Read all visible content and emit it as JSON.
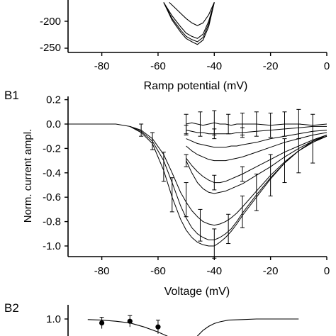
{
  "chart_data": [
    {
      "type": "line",
      "panel_label": "",
      "xlabel": "Ramp potential (mV)",
      "ylabel": "",
      "xlim": [
        -92,
        0
      ],
      "ylim": [
        -255,
        -165
      ],
      "x_ticks": [
        "-80",
        "-60",
        "-40",
        "-20",
        "0"
      ],
      "y_ticks": [
        "-200",
        "-250"
      ],
      "grid": false,
      "series": [
        {
          "x": [
            -56,
            -54,
            -52,
            -50,
            -48,
            -46,
            -44,
            -42,
            -40
          ],
          "y": [
            -165,
            -175,
            -185,
            -195,
            -203,
            -208,
            -203,
            -188,
            -165
          ]
        },
        {
          "x": [
            -58,
            -55,
            -52,
            -50,
            -48,
            -46,
            -44,
            -42,
            -40
          ],
          "y": [
            -165,
            -190,
            -210,
            -222,
            -228,
            -232,
            -224,
            -200,
            -165
          ]
        },
        {
          "x": [
            -58,
            -55,
            -52,
            -50,
            -48,
            -46,
            -44,
            -42,
            -40
          ],
          "y": [
            -165,
            -195,
            -216,
            -228,
            -234,
            -238,
            -230,
            -205,
            -165
          ]
        },
        {
          "x": [
            -58,
            -55,
            -52,
            -50,
            -48,
            -46,
            -44,
            -42,
            -40
          ],
          "y": [
            -165,
            -198,
            -220,
            -232,
            -238,
            -243,
            -235,
            -210,
            -165
          ]
        }
      ]
    },
    {
      "type": "line",
      "panel_label": "B1",
      "xlabel": "Voltage (mV)",
      "ylabel": "Norm. current ampl.",
      "xlim": [
        -92,
        0
      ],
      "ylim": [
        -1.07,
        0.22
      ],
      "x_ticks": [
        "-80",
        "-60",
        "-40",
        "-20",
        "0"
      ],
      "y_ticks": [
        "0.2",
        "0.0",
        "-0.2",
        "-0.4",
        "-0.6",
        "-0.8",
        "-1.0"
      ],
      "grid": false,
      "series": [
        {
          "x": [
            -92,
            -85,
            -80,
            -75,
            -70,
            -66,
            -62,
            -58,
            -55,
            -52,
            -50,
            -48,
            -46,
            -44,
            -42,
            -40,
            -38,
            -36,
            -34,
            -32,
            -30,
            -25,
            -20,
            -15,
            -10,
            -5,
            0
          ],
          "y": [
            0.0,
            0.0,
            0.0,
            0.0,
            -0.02,
            -0.07,
            -0.16,
            -0.38,
            -0.6,
            -0.78,
            -0.87,
            -0.93,
            -0.97,
            -0.99,
            -1.0,
            -1.0,
            -0.97,
            -0.93,
            -0.88,
            -0.82,
            -0.75,
            -0.6,
            -0.45,
            -0.32,
            -0.22,
            -0.14,
            -0.09
          ]
        },
        {
          "x": [
            -70,
            -66,
            -62,
            -58,
            -55,
            -52,
            -50,
            -48,
            -46,
            -44,
            -42,
            -40,
            -38,
            -36,
            -34,
            -32,
            -30,
            -25,
            -20,
            -15,
            -10,
            -5,
            0
          ],
          "y": [
            -0.02,
            -0.06,
            -0.14,
            -0.3,
            -0.48,
            -0.67,
            -0.77,
            -0.85,
            -0.9,
            -0.93,
            -0.95,
            -0.95,
            -0.93,
            -0.9,
            -0.86,
            -0.8,
            -0.73,
            -0.58,
            -0.44,
            -0.32,
            -0.22,
            -0.15,
            -0.1
          ]
        },
        {
          "x": [
            -70,
            -66,
            -62,
            -58,
            -55,
            -52,
            -50,
            -48,
            -46,
            -44,
            -42,
            -40,
            -38,
            -36,
            -34,
            -32,
            -30,
            -25,
            -20,
            -15,
            -10,
            -5,
            0
          ],
          "y": [
            -0.02,
            -0.05,
            -0.12,
            -0.25,
            -0.4,
            -0.56,
            -0.64,
            -0.71,
            -0.76,
            -0.8,
            -0.82,
            -0.83,
            -0.82,
            -0.8,
            -0.77,
            -0.73,
            -0.68,
            -0.55,
            -0.42,
            -0.31,
            -0.22,
            -0.15,
            -0.1
          ]
        },
        {
          "x": [
            -50,
            -48,
            -46,
            -44,
            -42,
            -40,
            -38,
            -36,
            -34,
            -32,
            -30,
            -25,
            -20,
            -15,
            -10,
            -5,
            0
          ],
          "y": [
            -0.3,
            -0.4,
            -0.48,
            -0.53,
            -0.56,
            -0.57,
            -0.56,
            -0.55,
            -0.53,
            -0.51,
            -0.49,
            -0.42,
            -0.35,
            -0.27,
            -0.2,
            -0.14,
            -0.1
          ]
        },
        {
          "x": [
            -50,
            -48,
            -46,
            -44,
            -42,
            -40,
            -38,
            -36,
            -34,
            -32,
            -30,
            -25,
            -20,
            -15,
            -10,
            -5,
            0
          ],
          "y": [
            -0.28,
            -0.34,
            -0.39,
            -0.43,
            -0.46,
            -0.48,
            -0.48,
            -0.47,
            -0.45,
            -0.43,
            -0.41,
            -0.35,
            -0.29,
            -0.23,
            -0.18,
            -0.13,
            -0.09
          ]
        },
        {
          "x": [
            -50,
            -48,
            -46,
            -44,
            -42,
            -40,
            -38,
            -36,
            -34,
            -32,
            -30,
            -25,
            -20,
            -15,
            -10,
            -5,
            0
          ],
          "y": [
            -0.18,
            -0.22,
            -0.25,
            -0.27,
            -0.29,
            -0.3,
            -0.3,
            -0.3,
            -0.29,
            -0.28,
            -0.27,
            -0.23,
            -0.19,
            -0.15,
            -0.12,
            -0.09,
            -0.07
          ]
        },
        {
          "x": [
            -50,
            -48,
            -46,
            -44,
            -42,
            -40,
            -38,
            -36,
            -34,
            -32,
            -30,
            -25,
            -20,
            -15,
            -10,
            -5,
            0
          ],
          "y": [
            -0.12,
            -0.14,
            -0.16,
            -0.17,
            -0.18,
            -0.19,
            -0.19,
            -0.19,
            -0.18,
            -0.18,
            -0.17,
            -0.15,
            -0.12,
            -0.1,
            -0.08,
            -0.06,
            -0.05
          ]
        },
        {
          "x": [
            -50,
            -48,
            -46,
            -44,
            -42,
            -40,
            -38,
            -36,
            -34,
            -32,
            -30,
            -25,
            -20,
            -15,
            -10,
            -5,
            0
          ],
          "y": [
            -0.05,
            -0.06,
            -0.07,
            -0.07,
            -0.08,
            -0.08,
            -0.08,
            -0.08,
            -0.08,
            -0.07,
            -0.07,
            -0.06,
            -0.05,
            -0.04,
            -0.03,
            -0.02,
            -0.02
          ]
        },
        {
          "x": [
            -50,
            -48,
            -46,
            -44,
            -42,
            -40,
            -38,
            -36,
            -34,
            -32,
            -30,
            -25,
            -20,
            -15,
            -10,
            -5,
            0
          ],
          "y": [
            0.0,
            0.01,
            0.0,
            -0.01,
            0.0,
            0.01,
            0.0,
            0.0,
            -0.01,
            0.0,
            0.0,
            0.0,
            -0.01,
            0.0,
            0.0,
            -0.01,
            0.0
          ]
        }
      ],
      "error_bars": [
        {
          "x": -66,
          "y": -0.05,
          "err": 0.05
        },
        {
          "x": -62,
          "y": -0.14,
          "err": 0.07
        },
        {
          "x": -58,
          "y": -0.35,
          "err": 0.12
        },
        {
          "x": -55,
          "y": -0.58,
          "err": 0.14
        },
        {
          "x": -50,
          "y": -0.62,
          "err": 0.14
        },
        {
          "x": -45,
          "y": -0.83,
          "err": 0.13
        },
        {
          "x": -40,
          "y": -0.98,
          "err": 0.12
        },
        {
          "x": -35,
          "y": -0.86,
          "err": 0.12
        },
        {
          "x": -30,
          "y": -0.72,
          "err": 0.13
        },
        {
          "x": -25,
          "y": -0.56,
          "err": 0.15
        },
        {
          "x": -20,
          "y": -0.42,
          "err": 0.17
        },
        {
          "x": -15,
          "y": -0.3,
          "err": 0.18
        },
        {
          "x": -10,
          "y": -0.2,
          "err": 0.2
        },
        {
          "x": -5,
          "y": -0.12,
          "err": 0.2
        },
        {
          "x": -50,
          "y": -0.3,
          "err": 0.05
        },
        {
          "x": -40,
          "y": -0.48,
          "err": 0.06
        },
        {
          "x": -30,
          "y": -0.41,
          "err": 0.06
        },
        {
          "x": -50,
          "y": -0.05,
          "err": 0.04
        },
        {
          "x": -40,
          "y": -0.08,
          "err": 0.04
        },
        {
          "x": -30,
          "y": -0.07,
          "err": 0.04
        },
        {
          "x": -50,
          "y": 0.0,
          "err": 0.08
        },
        {
          "x": -45,
          "y": 0.0,
          "err": 0.1
        },
        {
          "x": -40,
          "y": 0.01,
          "err": 0.1
        },
        {
          "x": -35,
          "y": 0.0,
          "err": 0.08
        },
        {
          "x": -30,
          "y": 0.0,
          "err": 0.09
        },
        {
          "x": -25,
          "y": 0.0,
          "err": 0.1
        },
        {
          "x": -20,
          "y": -0.01,
          "err": 0.1
        },
        {
          "x": -15,
          "y": 0.0,
          "err": 0.1
        },
        {
          "x": -10,
          "y": 0.0,
          "err": 0.12
        }
      ]
    },
    {
      "type": "scatter",
      "panel_label": "B2",
      "xlabel": "",
      "ylabel": "",
      "xlim": [
        -92,
        0
      ],
      "ylim": [
        0.55,
        1.15
      ],
      "y_ticks": [
        "1.0"
      ],
      "grid": false,
      "points": [
        {
          "x": -80,
          "y": 0.93,
          "err": 0.1
        },
        {
          "x": -70,
          "y": 0.96,
          "err": 0.1
        },
        {
          "x": -60,
          "y": 0.86,
          "err": 0.12
        }
      ],
      "fit_curves": [
        {
          "x": [
            -85,
            -80,
            -75,
            -70,
            -65,
            -60,
            -55,
            -52
          ],
          "y": [
            0.99,
            0.98,
            0.96,
            0.93,
            0.86,
            0.77,
            0.66,
            0.55
          ]
        },
        {
          "x": [
            -48,
            -46,
            -44,
            -42,
            -40,
            -38,
            -35,
            -30,
            -25,
            -20,
            -15,
            -10
          ],
          "y": [
            0.55,
            0.7,
            0.8,
            0.87,
            0.92,
            0.95,
            0.98,
            0.99,
            1.0,
            1.0,
            1.0,
            1.0
          ]
        }
      ]
    }
  ],
  "labels": {
    "top_y_200": "-200",
    "top_y_250": "-250",
    "top_xlabel": "Ramp potential (mV)",
    "b1_label": "B1",
    "b1_ylabel": "Norm. current ampl.",
    "b1_xlabel": "Voltage (mV)",
    "b2_label": "B2",
    "b2_y_10": "1.0",
    "x_ticks": [
      "-80",
      "-60",
      "-40",
      "-20",
      "0"
    ]
  }
}
